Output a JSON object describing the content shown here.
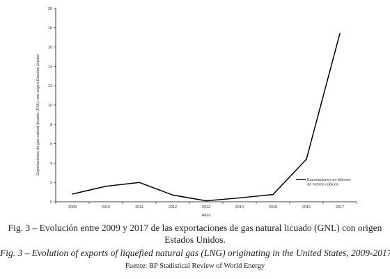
{
  "chart_data": {
    "type": "line",
    "x": [
      "2009",
      "2010",
      "2011",
      "2012",
      "2013",
      "2014",
      "2015",
      "2016",
      "2017"
    ],
    "series": [
      {
        "name": "Exportaciones en billones de metros cúbicos",
        "values": [
          0.8,
          1.6,
          2.0,
          0.7,
          0.1,
          0.4,
          0.75,
          4.4,
          17.4
        ]
      }
    ],
    "xlabel": "Años",
    "ylabel": "Exportaciones de gas natural licuado (GNL) con origen Estados Unidos",
    "ylim": [
      0,
      20
    ],
    "yticks": [
      0,
      2,
      4,
      6,
      8,
      10,
      12,
      14,
      16,
      18,
      20
    ],
    "grid": false,
    "legend_position": "right",
    "line_color": "#000000"
  },
  "captions": {
    "spanish": "Fig. 3 – Evolución entre 2009 y 2017 de las exportaciones de gas natural licuado (GNL) con origen Estados Unidos.",
    "english": "Fig. 3 – Evolution of exports of liquefied natural gas (LNG) originating in the United States, 2009-2017.",
    "source": "Fuente: BP Stadistical Review of World Energy"
  }
}
